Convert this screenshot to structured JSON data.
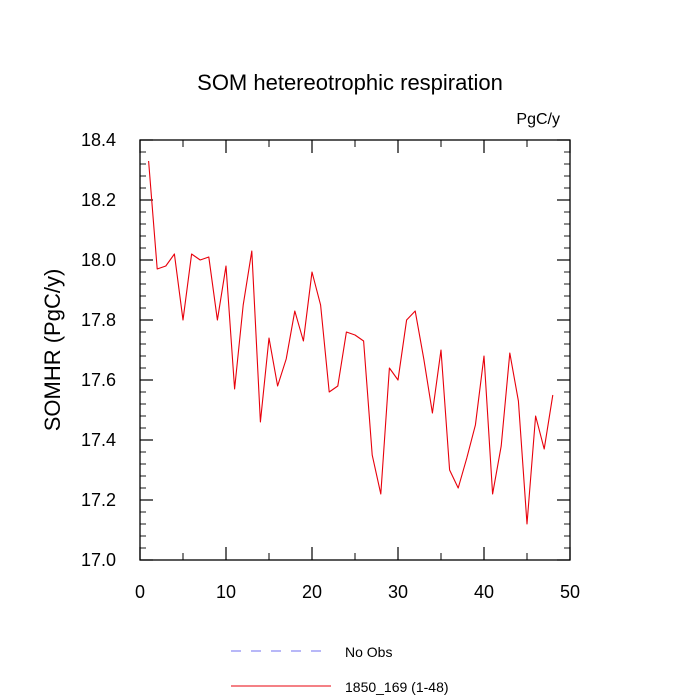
{
  "chart_data": {
    "type": "line",
    "title": "SOM hetereotrophic respiration",
    "units": "PgC/y",
    "xlabel": "",
    "ylabel": "SOMHR  (PgC/y)",
    "xlim": [
      0,
      50
    ],
    "ylim": [
      17.0,
      18.4
    ],
    "x_major_ticks": [
      0,
      10,
      20,
      30,
      40,
      50
    ],
    "x_minor_ticks": [
      5,
      15,
      25,
      35,
      45
    ],
    "y_major_ticks": [
      17.0,
      17.2,
      17.4,
      17.6,
      17.8,
      18.0,
      18.2,
      18.4
    ],
    "x_tick_labels": [
      "0",
      "10",
      "20",
      "30",
      "40",
      "50"
    ],
    "y_tick_labels": [
      "17.0",
      "17.2",
      "17.4",
      "17.6",
      "17.8",
      "18.0",
      "18.2",
      "18.4"
    ],
    "grid": false,
    "legend_position": "bottom-center",
    "series": [
      {
        "name": "1850_169 (1-48)",
        "color": "#e8000b",
        "dash": "solid",
        "x": [
          1,
          2,
          3,
          4,
          5,
          6,
          7,
          8,
          9,
          10,
          11,
          12,
          13,
          14,
          15,
          16,
          17,
          18,
          19,
          20,
          21,
          22,
          23,
          24,
          25,
          26,
          27,
          28,
          29,
          30,
          31,
          32,
          33,
          34,
          35,
          36,
          37,
          38,
          39,
          40,
          41,
          42,
          43,
          44,
          45,
          46,
          47,
          48
        ],
        "y": [
          18.33,
          17.97,
          17.98,
          18.02,
          17.8,
          18.02,
          18.0,
          18.01,
          17.8,
          17.98,
          17.57,
          17.85,
          18.03,
          17.46,
          17.74,
          17.58,
          17.67,
          17.83,
          17.73,
          17.96,
          17.85,
          17.56,
          17.58,
          17.76,
          17.75,
          17.73,
          17.35,
          17.22,
          17.64,
          17.6,
          17.8,
          17.83,
          17.67,
          17.49,
          17.7,
          17.3,
          17.24,
          17.34,
          17.45,
          17.68,
          17.22,
          17.38,
          17.69,
          17.53,
          17.12,
          17.48,
          17.37,
          17.55
        ]
      },
      {
        "name": "No Obs",
        "color": "#7070f0",
        "dash": "dashed",
        "x": [],
        "y": []
      }
    ]
  }
}
